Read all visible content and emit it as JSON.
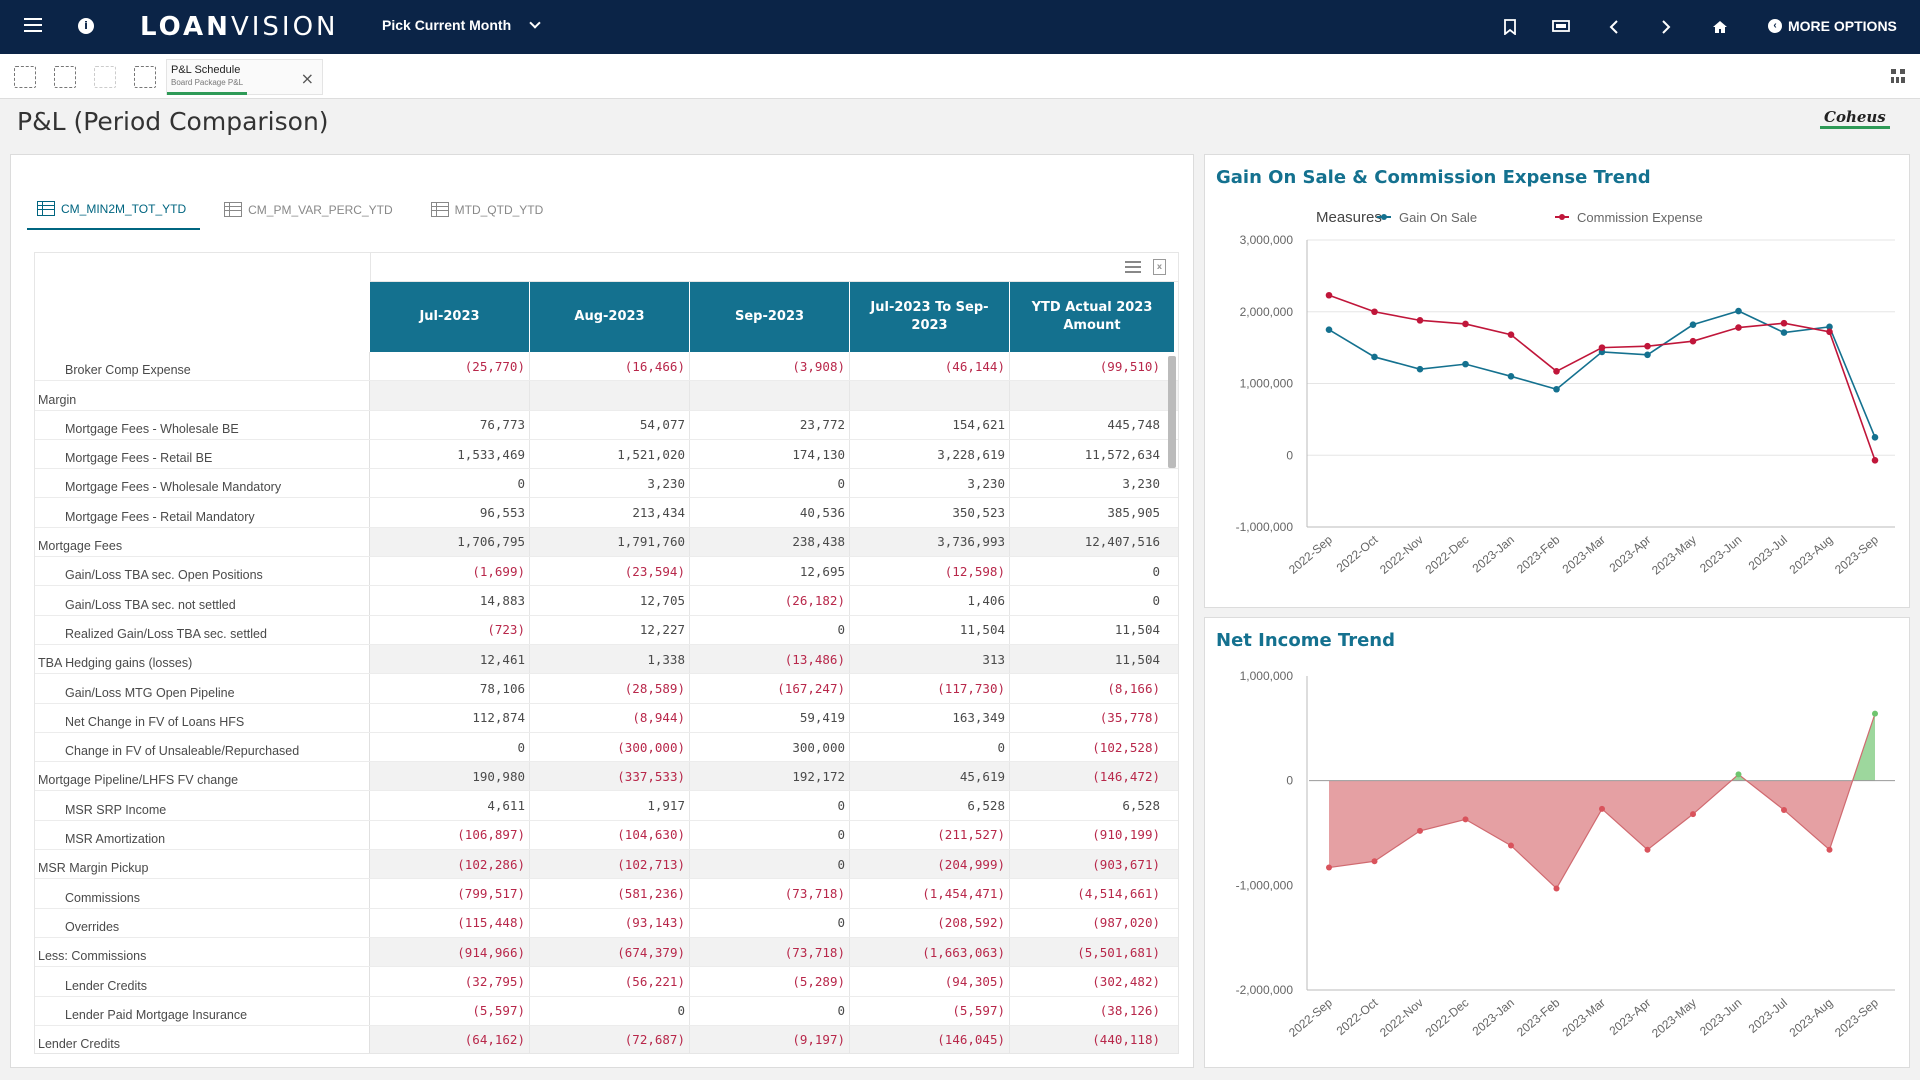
{
  "nav": {
    "logo_bold": "LOAN",
    "logo_thin": "VISION",
    "month_picker": "Pick Current Month",
    "more_options": "MORE OPTIONS"
  },
  "toolbar": {
    "sheet_title": "P&L Schedule",
    "sheet_subtitle": "Board Package P&L"
  },
  "page": {
    "title": "P&L (Period Comparison)",
    "brand": "Coheus"
  },
  "tabs": [
    {
      "label": "CM_MIN2M_TOT_YTD",
      "active": true
    },
    {
      "label": "CM_PM_VAR_PERC_YTD",
      "active": false
    },
    {
      "label": "MTD_QTD_YTD",
      "active": false
    }
  ],
  "table": {
    "columns": [
      "Jul-2023",
      "Aug-2023",
      "Sep-2023",
      "Jul-2023 To Sep-2023",
      "YTD Actual 2023 Amount"
    ],
    "rows": [
      {
        "label": "Broker Comp Expense",
        "indent": true,
        "values": [
          "(25,770)",
          "(16,466)",
          "(3,908)",
          "(46,144)",
          "(99,510)"
        ]
      },
      {
        "label": "Margin",
        "indent": false,
        "values": [
          "",
          "",
          "",
          "",
          ""
        ]
      },
      {
        "label": "Mortgage Fees - Wholesale BE",
        "indent": true,
        "values": [
          "76,773",
          "54,077",
          "23,772",
          "154,621",
          "445,748"
        ]
      },
      {
        "label": "Mortgage Fees - Retail BE",
        "indent": true,
        "values": [
          "1,533,469",
          "1,521,020",
          "174,130",
          "3,228,619",
          "11,572,634"
        ]
      },
      {
        "label": "Mortgage Fees - Wholesale Mandatory",
        "indent": true,
        "values": [
          "0",
          "3,230",
          "0",
          "3,230",
          "3,230"
        ]
      },
      {
        "label": "Mortgage Fees - Retail Mandatory",
        "indent": true,
        "values": [
          "96,553",
          "213,434",
          "40,536",
          "350,523",
          "385,905"
        ]
      },
      {
        "label": "Mortgage Fees",
        "indent": false,
        "values": [
          "1,706,795",
          "1,791,760",
          "238,438",
          "3,736,993",
          "12,407,516"
        ]
      },
      {
        "label": "Gain/Loss TBA sec. Open Positions",
        "indent": true,
        "values": [
          "(1,699)",
          "(23,594)",
          "12,695",
          "(12,598)",
          "0"
        ]
      },
      {
        "label": "Gain/Loss TBA sec. not settled",
        "indent": true,
        "values": [
          "14,883",
          "12,705",
          "(26,182)",
          "1,406",
          "0"
        ]
      },
      {
        "label": "Realized Gain/Loss TBA sec. settled",
        "indent": true,
        "values": [
          "(723)",
          "12,227",
          "0",
          "11,504",
          "11,504"
        ]
      },
      {
        "label": "TBA Hedging gains (losses)",
        "indent": false,
        "values": [
          "12,461",
          "1,338",
          "(13,486)",
          "313",
          "11,504"
        ]
      },
      {
        "label": "Gain/Loss MTG Open Pipeline",
        "indent": true,
        "values": [
          "78,106",
          "(28,589)",
          "(167,247)",
          "(117,730)",
          "(8,166)"
        ]
      },
      {
        "label": "Net Change in FV of Loans HFS",
        "indent": true,
        "values": [
          "112,874",
          "(8,944)",
          "59,419",
          "163,349",
          "(35,778)"
        ]
      },
      {
        "label": "Change in FV of Unsaleable/Repurchased",
        "indent": true,
        "values": [
          "0",
          "(300,000)",
          "300,000",
          "0",
          "(102,528)"
        ]
      },
      {
        "label": "Mortgage Pipeline/LHFS FV change",
        "indent": false,
        "values": [
          "190,980",
          "(337,533)",
          "192,172",
          "45,619",
          "(146,472)"
        ]
      },
      {
        "label": "MSR SRP Income",
        "indent": true,
        "values": [
          "4,611",
          "1,917",
          "0",
          "6,528",
          "6,528"
        ]
      },
      {
        "label": "MSR Amortization",
        "indent": true,
        "values": [
          "(106,897)",
          "(104,630)",
          "0",
          "(211,527)",
          "(910,199)"
        ]
      },
      {
        "label": "MSR Margin Pickup",
        "indent": false,
        "values": [
          "(102,286)",
          "(102,713)",
          "0",
          "(204,999)",
          "(903,671)"
        ]
      },
      {
        "label": "Commissions",
        "indent": true,
        "values": [
          "(799,517)",
          "(581,236)",
          "(73,718)",
          "(1,454,471)",
          "(4,514,661)"
        ]
      },
      {
        "label": "Overrides",
        "indent": true,
        "values": [
          "(115,448)",
          "(93,143)",
          "0",
          "(208,592)",
          "(987,020)"
        ]
      },
      {
        "label": "Less: Commissions",
        "indent": false,
        "values": [
          "(914,966)",
          "(674,379)",
          "(73,718)",
          "(1,663,063)",
          "(5,501,681)"
        ]
      },
      {
        "label": "Lender Credits",
        "indent": true,
        "values": [
          "(32,795)",
          "(56,221)",
          "(5,289)",
          "(94,305)",
          "(302,482)"
        ]
      },
      {
        "label": "Lender Paid Mortgage Insurance",
        "indent": true,
        "values": [
          "(5,597)",
          "0",
          "0",
          "(5,597)",
          "(38,126)"
        ]
      },
      {
        "label": "Lender Credits",
        "indent": false,
        "values": [
          "(64,162)",
          "(72,687)",
          "(9,197)",
          "(146,045)",
          "(440,118)"
        ]
      }
    ]
  },
  "chart_data": [
    {
      "type": "line",
      "title": "Gain On Sale & Commission Expense Trend",
      "legend_title": "Measures",
      "legend_position": "top",
      "categories": [
        "2022-Sep",
        "2022-Oct",
        "2022-Nov",
        "2022-Dec",
        "2023-Jan",
        "2023-Feb",
        "2023-Mar",
        "2023-Apr",
        "2023-May",
        "2023-Jun",
        "2023-Jul",
        "2023-Aug",
        "2023-Sep"
      ],
      "ylim": [
        -1000000,
        3000000
      ],
      "yticks": [
        -1000000,
        0,
        1000000,
        2000000,
        3000000
      ],
      "ytick_labels": [
        "-1,000,000",
        "0",
        "1,000,000",
        "2,000,000",
        "3,000,000"
      ],
      "grid": true,
      "series": [
        {
          "name": "Gain On Sale",
          "color": "#14718f",
          "values": [
            1750000,
            1370000,
            1200000,
            1270000,
            1100000,
            920000,
            1440000,
            1400000,
            1820000,
            2010000,
            1710000,
            1790000,
            250000
          ]
        },
        {
          "name": "Commission Expense",
          "color": "#c0163a",
          "values": [
            2230000,
            2000000,
            1880000,
            1830000,
            1680000,
            1170000,
            1500000,
            1520000,
            1590000,
            1780000,
            1840000,
            1720000,
            -70000
          ]
        }
      ]
    },
    {
      "type": "area",
      "title": "Net Income Trend",
      "categories": [
        "2022-Sep",
        "2022-Oct",
        "2022-Nov",
        "2022-Dec",
        "2023-Jan",
        "2023-Feb",
        "2023-Mar",
        "2023-Apr",
        "2023-May",
        "2023-Jun",
        "2023-Jul",
        "2023-Aug",
        "2023-Sep"
      ],
      "ylim": [
        -2000000,
        1000000
      ],
      "yticks": [
        -2000000,
        -1000000,
        0,
        1000000
      ],
      "ytick_labels": [
        "-2,000,000",
        "-1,000,000",
        "0",
        "1,000,000"
      ],
      "grid": false,
      "positive_color": "#8cd08c",
      "negative_color": "#e08f93",
      "series": [
        {
          "values": [
            -830000,
            -770000,
            -480000,
            -370000,
            -620000,
            -1030000,
            -270000,
            -660000,
            -320000,
            60000,
            -280000,
            -660000,
            640000
          ]
        }
      ]
    }
  ]
}
